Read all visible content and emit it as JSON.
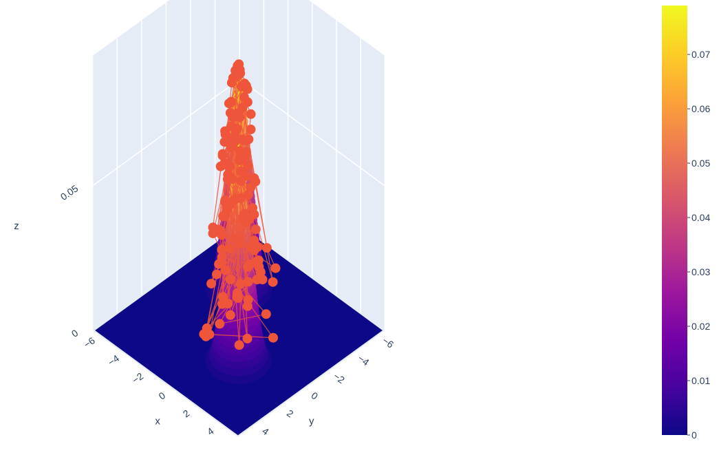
{
  "chart_data": {
    "type": "surface3d+scatter3d",
    "title": "",
    "axes": {
      "x": {
        "label": "x",
        "ticks": [
          "−6",
          "−4",
          "−2",
          "0",
          "2",
          "4"
        ],
        "range": [
          -6,
          6
        ]
      },
      "y": {
        "label": "y",
        "ticks": [
          "−6",
          "−4",
          "−2",
          "0",
          "2",
          "4"
        ],
        "range": [
          -6,
          6
        ]
      },
      "z": {
        "label": "z",
        "ticks": [
          "0",
          "0.05"
        ],
        "range": [
          0,
          0.08
        ]
      }
    },
    "surface": {
      "description_free": true,
      "peaks": [
        {
          "x": -2,
          "y": -2,
          "height": 0.08,
          "spread": 1.0
        },
        {
          "x": 2,
          "y": 2,
          "height": 0.08,
          "spread": 1.0
        }
      ]
    },
    "colorbar": {
      "ticks": [
        "0",
        "0.01",
        "0.02",
        "0.03",
        "0.04",
        "0.05",
        "0.06",
        "0.07"
      ],
      "tick_values": [
        0,
        0.01,
        0.02,
        0.03,
        0.04,
        0.05,
        0.06,
        0.07
      ],
      "range": [
        0,
        0.079
      ],
      "colorscale": [
        "#0d0887",
        "#46039f",
        "#7201a8",
        "#9c179e",
        "#bd3786",
        "#d8576b",
        "#ed7953",
        "#fb9f3a",
        "#fdca26",
        "#f0f921"
      ]
    },
    "scatter_color": "#ef553b",
    "grid": true,
    "background": "#e5ecf6"
  }
}
